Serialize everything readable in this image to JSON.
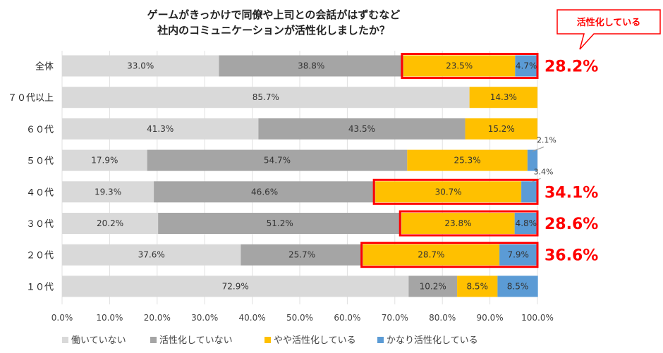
{
  "chart_data": {
    "type": "bar",
    "orientation": "horizontal-stacked-100",
    "title_lines": [
      "ゲームがきっかけで同僚や上司との会話がはずむなど",
      "社内のコミュニケーションが活性化しましたか？"
    ],
    "callout": "活性化している",
    "categories": [
      "全体",
      "７０代以上",
      "６０代",
      "５０代",
      "４０代",
      "３０代",
      "２０代",
      "１０代"
    ],
    "series": [
      {
        "name": "働いていない",
        "color": "#d9d9d9",
        "values": [
          33.0,
          85.7,
          41.3,
          17.9,
          19.3,
          20.2,
          37.6,
          72.9
        ]
      },
      {
        "name": "活性化していない",
        "color": "#a5a5a5",
        "values": [
          38.8,
          0,
          43.5,
          54.7,
          46.6,
          51.2,
          25.7,
          10.2
        ]
      },
      {
        "name": "やや活性化している",
        "color": "#ffc000",
        "values": [
          23.5,
          14.3,
          15.2,
          25.3,
          30.7,
          23.8,
          28.7,
          8.5
        ]
      },
      {
        "name": "かなり活性化している",
        "color": "#5b9bd5",
        "values": [
          4.7,
          0,
          0,
          2.1,
          3.4,
          4.8,
          7.9,
          8.5
        ]
      }
    ],
    "segment_labels": [
      [
        "33.0%",
        "38.8%",
        "23.5%",
        "4.7%"
      ],
      [
        "85.7%",
        "",
        "14.3%",
        ""
      ],
      [
        "41.3%",
        "43.5%",
        "15.2%",
        ""
      ],
      [
        "17.9%",
        "54.7%",
        "25.3%",
        "2.1%"
      ],
      [
        "19.3%",
        "46.6%",
        "30.7%",
        "3.4%"
      ],
      [
        "20.2%",
        "51.2%",
        "23.8%",
        "4.8%"
      ],
      [
        "37.6%",
        "25.7%",
        "28.7%",
        "7.9%"
      ],
      [
        "72.9%",
        "10.2%",
        "8.5%",
        "8.5%"
      ]
    ],
    "highlights": [
      {
        "category": "全体",
        "label": "28.2%"
      },
      {
        "category": "４０代",
        "label": "34.1%"
      },
      {
        "category": "３０代",
        "label": "28.6%"
      },
      {
        "category": "２０代",
        "label": "36.6%"
      }
    ],
    "x_ticks": [
      "0.0%",
      "10.0%",
      "20.0%",
      "30.0%",
      "40.0%",
      "50.0%",
      "60.0%",
      "70.0%",
      "80.0%",
      "90.0%",
      "100.0%"
    ],
    "xlim": [
      0,
      100
    ],
    "legend_position": "bottom",
    "colors": {
      "highlight": "#ff0000"
    }
  }
}
